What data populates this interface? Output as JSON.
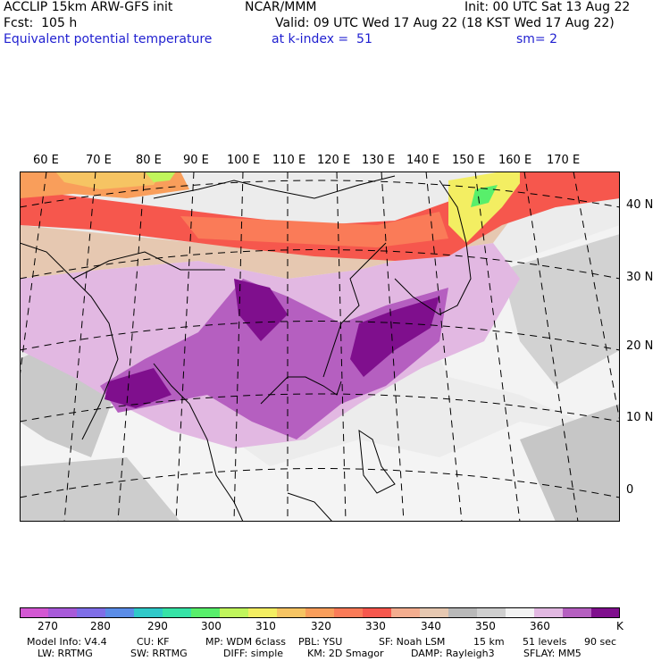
{
  "header": {
    "line1_left": "ACCLIP 15km ARW-GFS init",
    "line1_center": "NCAR/MMM",
    "line1_right": "Init: 00 UTC Sat 13 Aug 22",
    "line2_left": "Fcst:  105 h",
    "line2_right": "Valid: 09 UTC Wed 17 Aug 22 (18 KST Wed 17 Aug 22)",
    "line3_left": "Equivalent potential temperature",
    "line3_center": "at k-index =  51",
    "line3_right": "sm= 2"
  },
  "map": {
    "lon_labels": [
      "60 E",
      "70 E",
      "80 E",
      "90 E",
      "100 E",
      "110 E",
      "120 E",
      "130 E",
      "140 E",
      "150 E",
      "160 E",
      "170 E"
    ],
    "lat_labels": [
      "40 N",
      "30 N",
      "20 N",
      "10 N",
      "0"
    ]
  },
  "colorbar": {
    "colors": [
      "#d357d3",
      "#a85ad9",
      "#7f6ee8",
      "#5b8de8",
      "#2fc9c9",
      "#36e3a6",
      "#58ef6b",
      "#c0f55c",
      "#f3ee62",
      "#f6c463",
      "#f99e5b",
      "#fa7b58",
      "#f6574d",
      "#f3ad8f",
      "#e6c8b1",
      "#b8b8b8",
      "#cfcfcf",
      "#f2f2f2",
      "#e2b8e2",
      "#b55fc0",
      "#7f0f8d"
    ],
    "tick_labels": [
      "270",
      "280",
      "290",
      "300",
      "310",
      "320",
      "330",
      "340",
      "350",
      "360"
    ],
    "unit": "K"
  },
  "footer": {
    "line1": [
      "Model Info: V4.4",
      "CU: KF",
      "MP: WDM 6class",
      "PBL: YSU",
      "SF: Noah LSM",
      "15 km",
      "51 levels",
      "90 sec"
    ],
    "line2": [
      "LW: RRTMG",
      "SW: RRTMG",
      "DIFF: simple",
      "KM: 2D Smagor",
      "DAMP: Rayleigh3",
      "SFLAY: MM5"
    ]
  }
}
